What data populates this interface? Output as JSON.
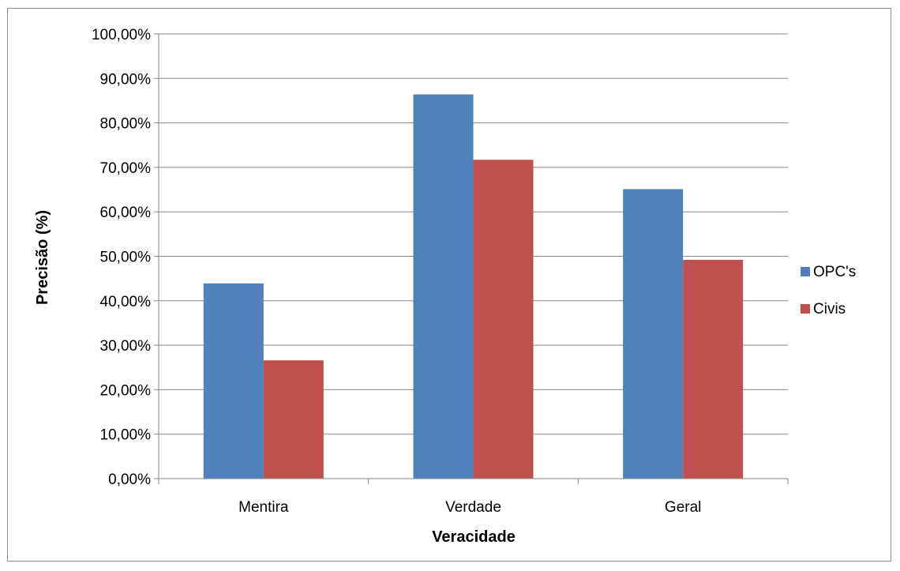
{
  "chart_data": {
    "type": "bar",
    "categories": [
      "Mentira",
      "Verdade",
      "Geral"
    ],
    "series": [
      {
        "name": "OPC's",
        "values": [
          43.9,
          86.4,
          65.1
        ],
        "color": "#4F81BD"
      },
      {
        "name": "Civis",
        "values": [
          26.6,
          71.7,
          49.2
        ],
        "color": "#C0504D"
      }
    ],
    "title": "",
    "xlabel": "Veracidade",
    "ylabel": "Precisão (%)",
    "ylim": [
      0,
      100
    ],
    "ytick_values": [
      0,
      10,
      20,
      30,
      40,
      50,
      60,
      70,
      80,
      90,
      100
    ],
    "ytick_labels": [
      "0,00%",
      "10,00%",
      "20,00%",
      "30,00%",
      "40,00%",
      "50,00%",
      "60,00%",
      "70,00%",
      "80,00%",
      "90,00%",
      "100,00%"
    ],
    "grid": true,
    "legend": "right"
  }
}
